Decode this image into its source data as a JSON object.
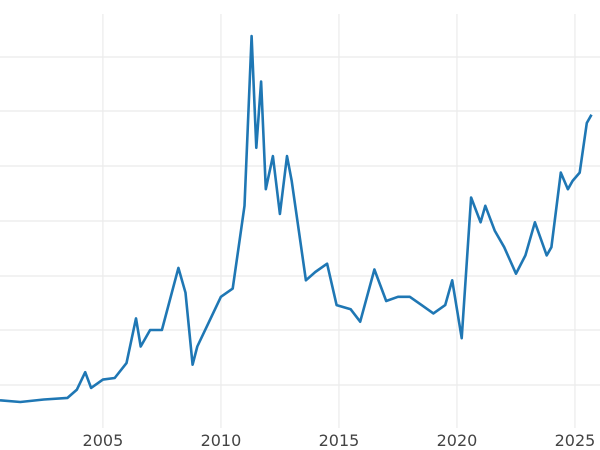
{
  "chart_data": {
    "type": "line",
    "title": "",
    "xlabel": "",
    "ylabel": "",
    "grid": true,
    "line_color": "#1f77b4",
    "x_ticks": [
      "2005",
      "2010",
      "2015",
      "2020",
      "2025"
    ],
    "x_tick_values": [
      2005,
      2010,
      2015,
      2020,
      2025
    ],
    "xlim": [
      2000.64,
      2026.06
    ],
    "ylim": [
      0,
      52.85
    ],
    "series": [
      {
        "x": [
          2000.64,
          2001.5,
          2002.5,
          2003.5,
          2003.9,
          2004.25,
          2004.5,
          2005.0,
          2005.5,
          2006.0,
          2006.4,
          2006.6,
          2007.0,
          2007.5,
          2008.2,
          2008.5,
          2008.8,
          2009.0,
          2009.5,
          2010.0,
          2010.5,
          2010.8,
          2011.0,
          2011.3,
          2011.5,
          2011.7,
          2011.9,
          2012.2,
          2012.5,
          2012.8,
          2013.0,
          2013.3,
          2013.6,
          2014.0,
          2014.5,
          2014.9,
          2015.5,
          2015.9,
          2016.5,
          2017.0,
          2017.5,
          2018.0,
          2018.5,
          2019.0,
          2019.5,
          2019.8,
          2020.2,
          2020.6,
          2021.0,
          2021.2,
          2021.6,
          2022.0,
          2022.5,
          2022.9,
          2023.3,
          2023.8,
          2024.0,
          2024.4,
          2024.7,
          2024.9,
          2025.2,
          2025.5,
          2025.7
        ],
        "y": [
          4.5,
          4.3,
          4.6,
          4.8,
          5.8,
          7.9,
          6.0,
          7.0,
          7.2,
          9.0,
          14.4,
          11.0,
          13.0,
          13.0,
          20.5,
          17.5,
          8.8,
          11.0,
          14.0,
          17.0,
          18.0,
          24.0,
          28.0,
          48.5,
          35.0,
          43.0,
          30.0,
          34.0,
          27.0,
          34.0,
          31.0,
          25.0,
          19.0,
          20.0,
          21.0,
          16.0,
          15.5,
          14.0,
          20.3,
          16.5,
          17.0,
          17.0,
          16.0,
          15.0,
          16.0,
          19.0,
          12.0,
          29.0,
          26.0,
          28.0,
          25.0,
          23.0,
          19.8,
          22.0,
          26.0,
          22.0,
          23.0,
          32.0,
          30.0,
          31.0,
          32.0,
          38.0,
          39.0
        ]
      }
    ]
  }
}
